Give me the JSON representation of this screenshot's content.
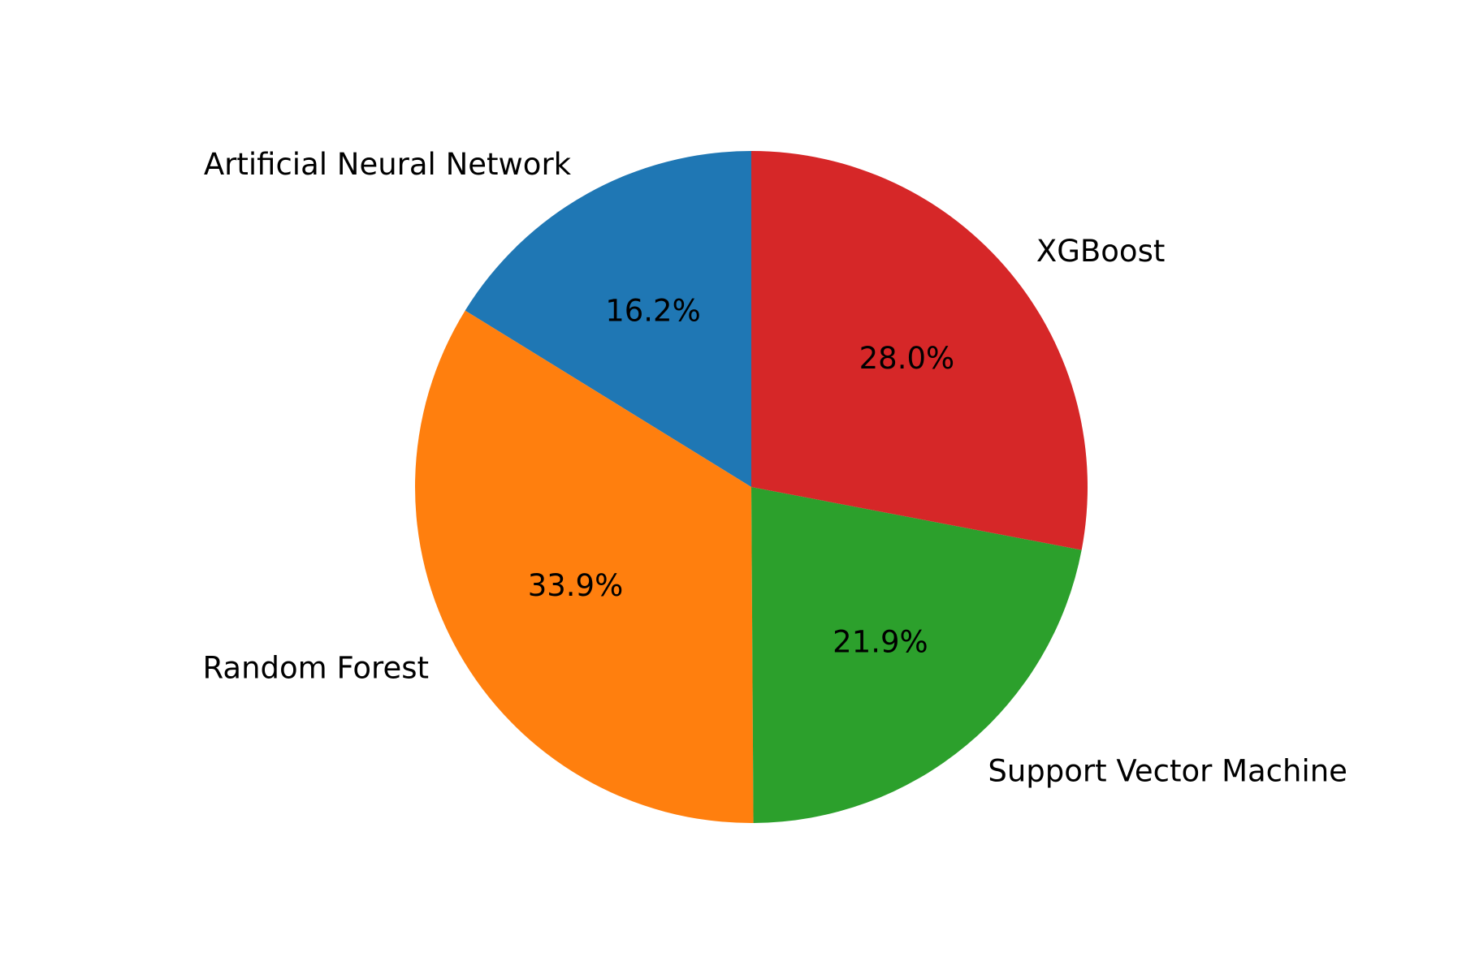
{
  "chart_data": {
    "type": "pie",
    "categories": [
      "Artificial Neural Network",
      "Random Forest",
      "Support Vector Machine",
      "XGBoost"
    ],
    "values": [
      16.2,
      33.9,
      21.9,
      28.0
    ],
    "percent_labels": [
      "16.2%",
      "33.9%",
      "21.9%",
      "28.0%"
    ],
    "colors": [
      "#1f77b4",
      "#ff7f0e",
      "#2ca02c",
      "#d62728"
    ],
    "start_angle_deg": 90,
    "direction": "counterclockwise",
    "title": "",
    "legend": "none"
  }
}
